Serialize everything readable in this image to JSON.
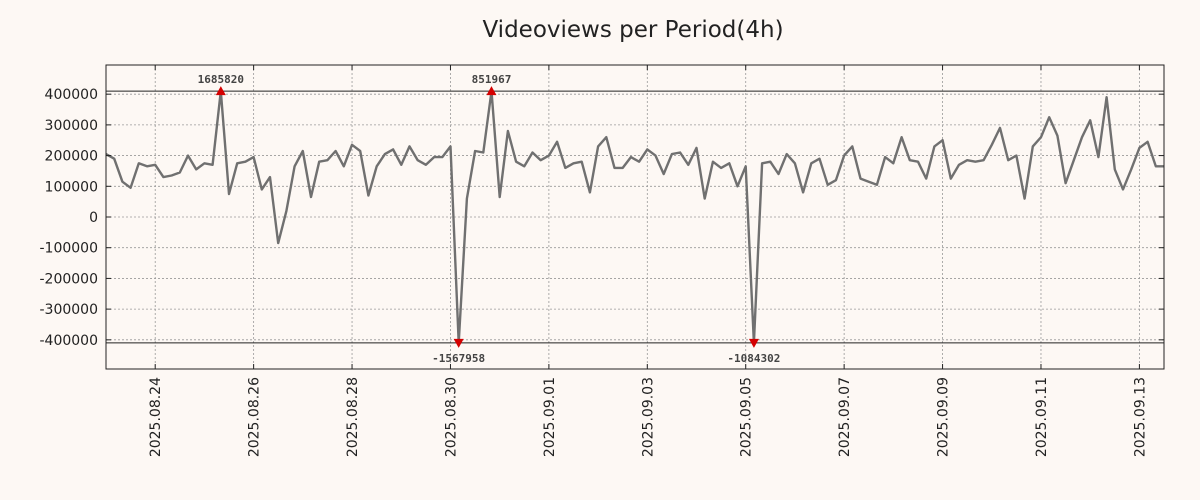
{
  "chart_data": {
    "type": "line",
    "title": "Videoviews per Period(4h)",
    "xlabel": "",
    "ylabel": "",
    "ylim": [
      -495000,
      495000
    ],
    "xlim": [
      "2025-08-23T00:00",
      "2025-09-13T12:00"
    ],
    "grid": true,
    "y_ticks": [
      400000,
      300000,
      200000,
      100000,
      0,
      -100000,
      -200000,
      -300000,
      -400000
    ],
    "y_tick_labels": [
      "400000",
      "300000",
      "200000",
      "100000",
      "0",
      "-100000",
      "-200000",
      "-300000",
      "-400000"
    ],
    "x_ticks": [
      "2025-08-24",
      "2025-08-26",
      "2025-08-28",
      "2025-08-30",
      "2025-09-01",
      "2025-09-03",
      "2025-09-05",
      "2025-09-07",
      "2025-09-09",
      "2025-09-11",
      "2025-09-13"
    ],
    "x_tick_labels": [
      "2025.08.24",
      "2025.08.26",
      "2025.08.28",
      "2025.08.30",
      "2025.09.01",
      "2025.09.03",
      "2025.09.05",
      "2025.09.07",
      "2025.09.09",
      "2025.09.11",
      "2025.09.13"
    ],
    "clip_lines": [
      410000,
      -410000
    ],
    "series": [
      {
        "color": "#707070",
        "points": [
          [
            "2025-08-23T00:00",
            205000
          ],
          [
            "2025-08-23T04:00",
            190000
          ],
          [
            "2025-08-23T08:00",
            115000
          ],
          [
            "2025-08-23T12:00",
            95000
          ],
          [
            "2025-08-23T16:00",
            175000
          ],
          [
            "2025-08-23T20:00",
            165000
          ],
          [
            "2025-08-24T00:00",
            170000
          ],
          [
            "2025-08-24T04:00",
            130000
          ],
          [
            "2025-08-24T08:00",
            135000
          ],
          [
            "2025-08-24T12:00",
            145000
          ],
          [
            "2025-08-24T16:00",
            200000
          ],
          [
            "2025-08-24T20:00",
            155000
          ],
          [
            "2025-08-25T00:00",
            175000
          ],
          [
            "2025-08-25T04:00",
            170000
          ],
          [
            "2025-08-25T08:00",
            410000
          ],
          [
            "2025-08-25T12:00",
            75000
          ],
          [
            "2025-08-25T16:00",
            175000
          ],
          [
            "2025-08-25T20:00",
            180000
          ],
          [
            "2025-08-26T00:00",
            195000
          ],
          [
            "2025-08-26T04:00",
            90000
          ],
          [
            "2025-08-26T08:00",
            130000
          ],
          [
            "2025-08-26T12:00",
            -85000
          ],
          [
            "2025-08-26T16:00",
            20000
          ],
          [
            "2025-08-26T20:00",
            165000
          ],
          [
            "2025-08-27T00:00",
            215000
          ],
          [
            "2025-08-27T04:00",
            65000
          ],
          [
            "2025-08-27T08:00",
            180000
          ],
          [
            "2025-08-27T12:00",
            185000
          ],
          [
            "2025-08-27T16:00",
            215000
          ],
          [
            "2025-08-27T20:00",
            165000
          ],
          [
            "2025-08-28T00:00",
            235000
          ],
          [
            "2025-08-28T04:00",
            215000
          ],
          [
            "2025-08-28T08:00",
            70000
          ],
          [
            "2025-08-28T12:00",
            165000
          ],
          [
            "2025-08-28T16:00",
            205000
          ],
          [
            "2025-08-28T20:00",
            220000
          ],
          [
            "2025-08-29T00:00",
            170000
          ],
          [
            "2025-08-29T04:00",
            230000
          ],
          [
            "2025-08-29T08:00",
            185000
          ],
          [
            "2025-08-29T12:00",
            170000
          ],
          [
            "2025-08-29T16:00",
            195000
          ],
          [
            "2025-08-29T20:00",
            195000
          ],
          [
            "2025-08-30T00:00",
            230000
          ],
          [
            "2025-08-30T04:00",
            -410000
          ],
          [
            "2025-08-30T08:00",
            60000
          ],
          [
            "2025-08-30T12:00",
            215000
          ],
          [
            "2025-08-30T16:00",
            210000
          ],
          [
            "2025-08-30T20:00",
            410000
          ],
          [
            "2025-08-31T00:00",
            65000
          ],
          [
            "2025-08-31T04:00",
            280000
          ],
          [
            "2025-08-31T08:00",
            180000
          ],
          [
            "2025-08-31T12:00",
            165000
          ],
          [
            "2025-08-31T16:00",
            210000
          ],
          [
            "2025-08-31T20:00",
            185000
          ],
          [
            "2025-09-01T00:00",
            200000
          ],
          [
            "2025-09-01T04:00",
            245000
          ],
          [
            "2025-09-01T08:00",
            160000
          ],
          [
            "2025-09-01T12:00",
            175000
          ],
          [
            "2025-09-01T16:00",
            180000
          ],
          [
            "2025-09-01T20:00",
            80000
          ],
          [
            "2025-09-02T00:00",
            230000
          ],
          [
            "2025-09-02T04:00",
            260000
          ],
          [
            "2025-09-02T08:00",
            160000
          ],
          [
            "2025-09-02T12:00",
            160000
          ],
          [
            "2025-09-02T16:00",
            195000
          ],
          [
            "2025-09-02T20:00",
            180000
          ],
          [
            "2025-09-03T00:00",
            220000
          ],
          [
            "2025-09-03T04:00",
            200000
          ],
          [
            "2025-09-03T08:00",
            140000
          ],
          [
            "2025-09-03T12:00",
            205000
          ],
          [
            "2025-09-03T16:00",
            210000
          ],
          [
            "2025-09-03T20:00",
            170000
          ],
          [
            "2025-09-04T00:00",
            225000
          ],
          [
            "2025-09-04T04:00",
            60000
          ],
          [
            "2025-09-04T08:00",
            180000
          ],
          [
            "2025-09-04T12:00",
            160000
          ],
          [
            "2025-09-04T16:00",
            175000
          ],
          [
            "2025-09-04T20:00",
            100000
          ],
          [
            "2025-09-05T00:00",
            165000
          ],
          [
            "2025-09-05T04:00",
            -410000
          ],
          [
            "2025-09-05T08:00",
            175000
          ],
          [
            "2025-09-05T12:00",
            180000
          ],
          [
            "2025-09-05T16:00",
            140000
          ],
          [
            "2025-09-05T20:00",
            205000
          ],
          [
            "2025-09-06T00:00",
            175000
          ],
          [
            "2025-09-06T04:00",
            80000
          ],
          [
            "2025-09-06T08:00",
            175000
          ],
          [
            "2025-09-06T12:00",
            190000
          ],
          [
            "2025-09-06T16:00",
            105000
          ],
          [
            "2025-09-06T20:00",
            120000
          ],
          [
            "2025-09-07T00:00",
            200000
          ],
          [
            "2025-09-07T04:00",
            230000
          ],
          [
            "2025-09-07T08:00",
            125000
          ],
          [
            "2025-09-07T12:00",
            115000
          ],
          [
            "2025-09-07T16:00",
            105000
          ],
          [
            "2025-09-07T20:00",
            195000
          ],
          [
            "2025-09-08T00:00",
            175000
          ],
          [
            "2025-09-08T04:00",
            260000
          ],
          [
            "2025-09-08T08:00",
            185000
          ],
          [
            "2025-09-08T12:00",
            180000
          ],
          [
            "2025-09-08T16:00",
            125000
          ],
          [
            "2025-09-08T20:00",
            230000
          ],
          [
            "2025-09-09T00:00",
            250000
          ],
          [
            "2025-09-09T04:00",
            125000
          ],
          [
            "2025-09-09T08:00",
            170000
          ],
          [
            "2025-09-09T12:00",
            185000
          ],
          [
            "2025-09-09T16:00",
            180000
          ],
          [
            "2025-09-09T20:00",
            185000
          ],
          [
            "2025-09-10T00:00",
            235000
          ],
          [
            "2025-09-10T04:00",
            290000
          ],
          [
            "2025-09-10T08:00",
            185000
          ],
          [
            "2025-09-10T12:00",
            200000
          ],
          [
            "2025-09-10T16:00",
            60000
          ],
          [
            "2025-09-10T20:00",
            230000
          ],
          [
            "2025-09-11T00:00",
            260000
          ],
          [
            "2025-09-11T04:00",
            325000
          ],
          [
            "2025-09-11T08:00",
            265000
          ],
          [
            "2025-09-11T12:00",
            110000
          ],
          [
            "2025-09-11T16:00",
            185000
          ],
          [
            "2025-09-11T20:00",
            260000
          ],
          [
            "2025-09-12T00:00",
            315000
          ],
          [
            "2025-09-12T04:00",
            195000
          ],
          [
            "2025-09-12T08:00",
            390000
          ],
          [
            "2025-09-12T12:00",
            155000
          ],
          [
            "2025-09-12T16:00",
            90000
          ],
          [
            "2025-09-12T20:00",
            155000
          ],
          [
            "2025-09-13T00:00",
            225000
          ],
          [
            "2025-09-13T04:00",
            245000
          ],
          [
            "2025-09-13T08:00",
            165000
          ],
          [
            "2025-09-13T12:00",
            165000
          ]
        ]
      }
    ],
    "annotations": [
      {
        "x": "2025-08-25T08:00",
        "value": 1685820,
        "label": "1685820",
        "direction": "up"
      },
      {
        "x": "2025-08-30T20:00",
        "value": 851967,
        "label": "851967",
        "direction": "up"
      },
      {
        "x": "2025-08-30T04:00",
        "value": -1567958,
        "label": "-1567958",
        "direction": "down"
      },
      {
        "x": "2025-09-05T04:00",
        "value": -1084302,
        "label": "-1084302",
        "direction": "down"
      }
    ],
    "colors": {
      "line": "#707070",
      "marker": "#d40000",
      "background": "#fdf8f4",
      "grid": "#999999"
    }
  }
}
